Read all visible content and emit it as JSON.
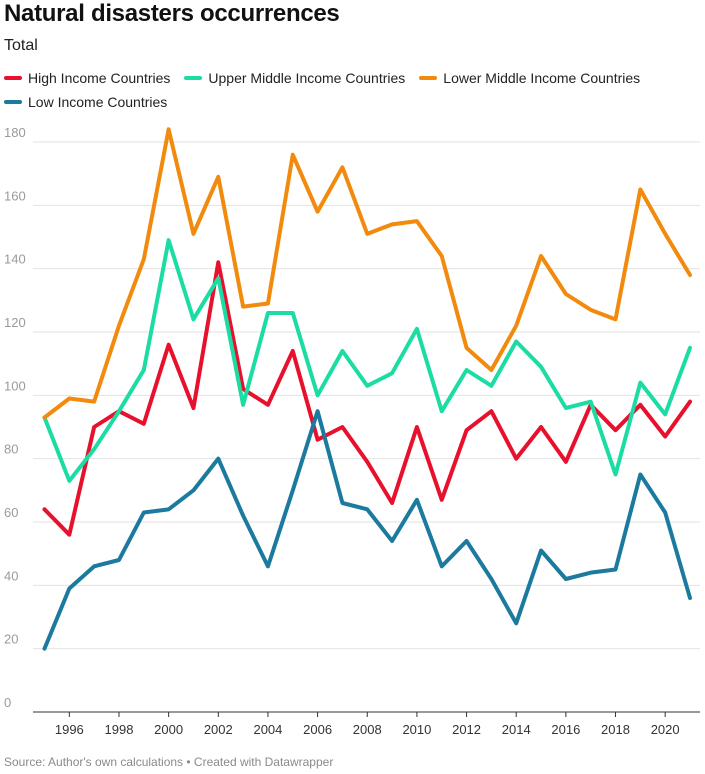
{
  "chart_data": {
    "type": "line",
    "title": "Natural disasters occurrences",
    "subtitle": "Total",
    "source": "Source: Author's own calculations • Created with Datawrapper",
    "xlabel": "",
    "ylabel": "",
    "x": [
      1995,
      1996,
      1997,
      1998,
      1999,
      2000,
      2001,
      2002,
      2003,
      2004,
      2005,
      2006,
      2007,
      2008,
      2009,
      2010,
      2011,
      2012,
      2013,
      2014,
      2015,
      2016,
      2017,
      2018,
      2019,
      2020,
      2021
    ],
    "xticks": [
      1996,
      1998,
      2000,
      2002,
      2004,
      2006,
      2008,
      2010,
      2012,
      2014,
      2016,
      2018,
      2020
    ],
    "yticks": [
      0,
      20,
      40,
      60,
      80,
      100,
      120,
      140,
      160,
      180
    ],
    "ylim": [
      0,
      180
    ],
    "series": [
      {
        "name": "High Income Countries",
        "color": "#e8112d",
        "values": [
          64,
          56,
          90,
          95,
          91,
          116,
          96,
          142,
          102,
          97,
          114,
          86,
          90,
          79,
          66,
          90,
          67,
          89,
          95,
          80,
          90,
          79,
          97,
          89,
          97,
          87,
          98
        ]
      },
      {
        "name": "Upper Middle Income Countries",
        "color": "#1bdca3",
        "values": [
          93,
          73,
          83,
          95,
          108,
          149,
          124,
          137,
          97,
          126,
          126,
          100,
          114,
          103,
          107,
          121,
          95,
          108,
          103,
          117,
          109,
          96,
          98,
          75,
          104,
          94,
          115
        ]
      },
      {
        "name": "Lower Middle Income Countries",
        "color": "#f28a0e",
        "values": [
          93,
          99,
          98,
          122,
          143,
          184,
          151,
          169,
          128,
          129,
          176,
          158,
          172,
          151,
          154,
          155,
          144,
          115,
          108,
          122,
          144,
          132,
          127,
          124,
          165,
          151,
          138
        ]
      },
      {
        "name": "Low Income Countries",
        "color": "#1b7a9e",
        "values": [
          20,
          39,
          46,
          48,
          63,
          64,
          70,
          80,
          62,
          46,
          70,
          95,
          66,
          64,
          54,
          67,
          46,
          54,
          42,
          28,
          51,
          42,
          44,
          45,
          75,
          63,
          36
        ]
      }
    ]
  }
}
